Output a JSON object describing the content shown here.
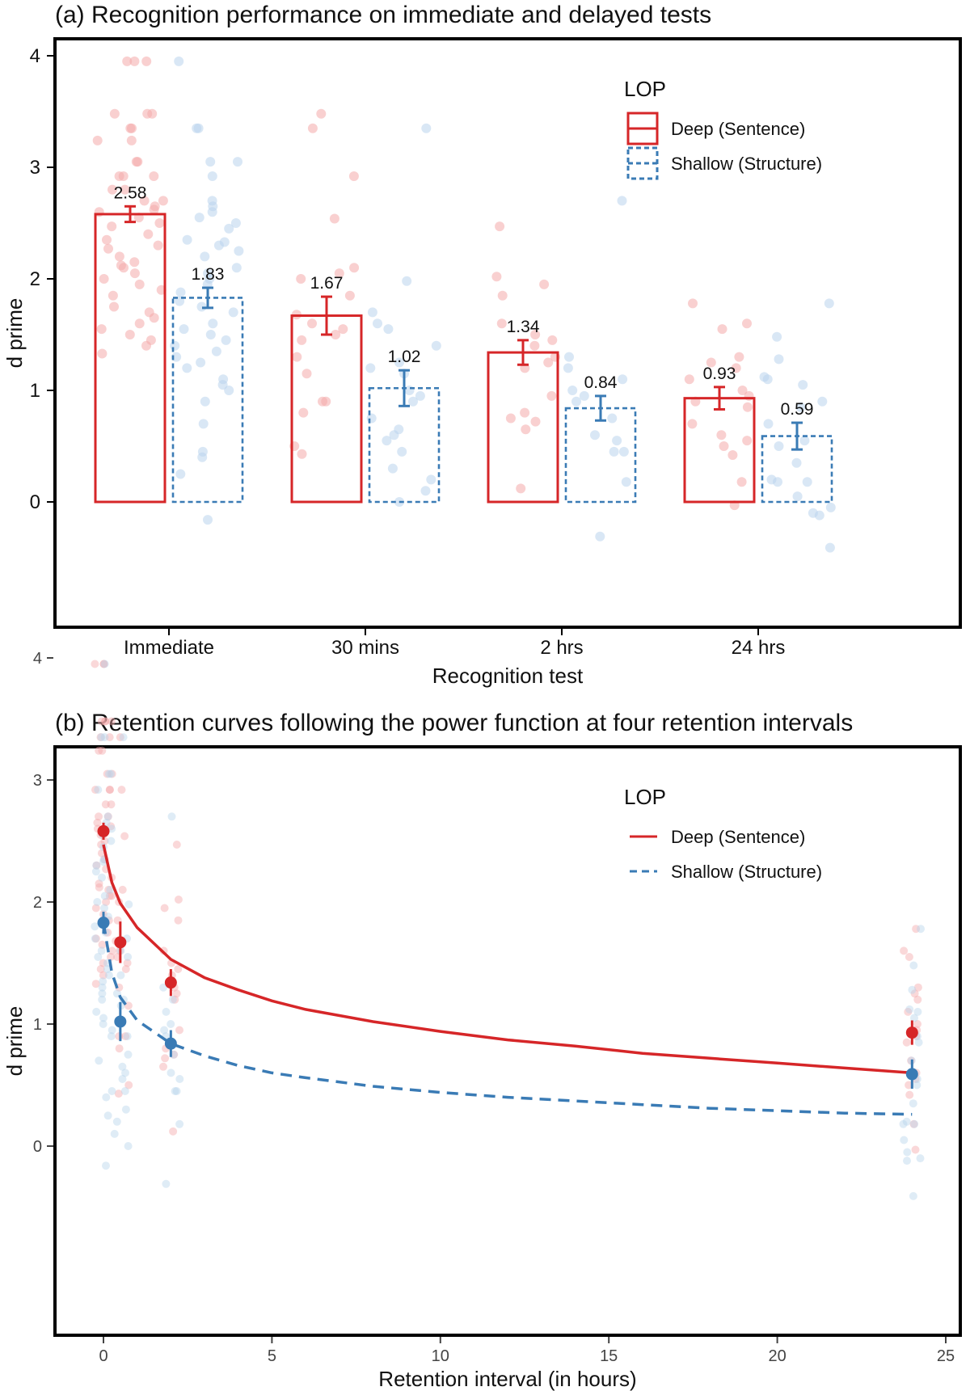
{
  "colors": {
    "deep": "#d62628",
    "shallow": "#3a7bb5",
    "deep_point": "#f4a9aa",
    "shallow_point": "#b9d4ec"
  },
  "legend": {
    "title": "LOP",
    "entries": [
      {
        "key": "deep",
        "label": "Deep (Sentence)"
      },
      {
        "key": "shallow",
        "label": "Shallow (Structure)"
      }
    ]
  },
  "chart_data": [
    {
      "type": "bar",
      "panel": "a",
      "title": "(a) Recognition performance on immediate and delayed tests",
      "xlabel": "Recognition test",
      "ylabel": "d prime",
      "categories": [
        "Immediate",
        "30 mins",
        "2 hrs",
        "24 hrs"
      ],
      "ylim": [
        -0.6,
        4.1
      ],
      "yticks": [
        0,
        1,
        2,
        3,
        4
      ],
      "grid": false,
      "legend_position": "top-right",
      "series": [
        {
          "name": "Deep (Sentence)",
          "key": "deep",
          "values": [
            2.58,
            1.67,
            1.34,
            0.93
          ],
          "se": [
            0.07,
            0.17,
            0.11,
            0.1
          ],
          "labels": [
            "2.58",
            "1.67",
            "1.34",
            "0.93"
          ]
        },
        {
          "name": "Shallow (Structure)",
          "key": "shallow",
          "values": [
            1.83,
            1.02,
            0.84,
            0.59
          ],
          "se": [
            0.09,
            0.16,
            0.11,
            0.12
          ],
          "labels": [
            "1.83",
            "1.02",
            "0.84",
            "0.59"
          ]
        }
      ],
      "points": {
        "deep": [
          [
            3.95,
            3.95,
            3.95,
            3.48,
            3.48,
            3.48,
            3.35,
            3.35,
            3.24,
            3.24,
            3.05,
            3.05,
            2.92,
            2.92,
            2.92,
            2.8,
            2.8,
            2.7,
            2.7,
            2.65,
            2.62,
            2.6,
            2.55,
            2.5,
            2.47,
            2.4,
            2.35,
            2.3,
            2.27,
            2.2,
            2.15,
            2.12,
            2.1,
            2.05,
            2.0,
            1.95,
            1.9,
            1.85,
            1.75,
            1.7,
            1.65,
            1.6,
            1.55,
            1.5,
            1.45,
            1.4,
            1.33
          ],
          [
            3.48,
            3.35,
            2.92,
            2.54,
            2.1,
            2.05,
            2.0,
            1.85,
            1.68,
            1.6,
            1.55,
            1.5,
            1.45,
            1.3,
            1.15,
            0.9,
            0.9,
            0.8,
            0.5,
            0.43
          ],
          [
            2.47,
            2.02,
            1.95,
            1.85,
            1.6,
            1.5,
            1.45,
            1.4,
            1.3,
            1.25,
            1.2,
            0.95,
            0.8,
            0.75,
            0.72,
            0.65,
            0.12
          ],
          [
            1.78,
            1.6,
            1.55,
            1.3,
            1.25,
            1.2,
            1.1,
            1.0,
            0.95,
            0.9,
            0.85,
            0.7,
            0.6,
            0.55,
            0.5,
            0.42,
            0.18,
            -0.03
          ]
        ],
        "shallow": [
          [
            3.95,
            3.35,
            3.35,
            3.05,
            3.05,
            2.92,
            2.7,
            2.65,
            2.6,
            2.55,
            2.5,
            2.45,
            2.35,
            2.33,
            2.3,
            2.25,
            2.2,
            2.1,
            2.05,
            2.0,
            1.95,
            1.88,
            1.8,
            1.75,
            1.7,
            1.6,
            1.55,
            1.5,
            1.45,
            1.4,
            1.35,
            1.3,
            1.25,
            1.2,
            1.1,
            1.05,
            1.0,
            0.9,
            0.7,
            0.45,
            0.4,
            0.25,
            -0.16
          ],
          [
            3.35,
            1.98,
            1.7,
            1.6,
            1.55,
            1.4,
            1.25,
            1.2,
            1.15,
            1.0,
            0.95,
            0.9,
            0.75,
            0.65,
            0.6,
            0.55,
            0.45,
            0.3,
            0.2,
            0.1,
            0.0
          ],
          [
            2.7,
            1.3,
            1.2,
            1.1,
            1.0,
            0.95,
            0.9,
            0.75,
            0.6,
            0.55,
            0.45,
            0.45,
            0.18,
            -0.31
          ],
          [
            1.78,
            1.48,
            1.28,
            1.12,
            1.1,
            1.05,
            0.9,
            0.85,
            0.7,
            0.55,
            0.5,
            0.35,
            0.2,
            0.18,
            0.18,
            0.05,
            -0.05,
            -0.1,
            -0.12,
            -0.41
          ]
        ]
      }
    },
    {
      "type": "scatter",
      "panel": "b",
      "title": "(b) Retention curves following the power function at four retention intervals",
      "xlabel": "Retention interval (in hours)",
      "ylabel": "d prime",
      "xlim": [
        -1.1,
        25.2
      ],
      "ylim": [
        -0.6,
        4.2
      ],
      "xticks": [
        0,
        5,
        10,
        15,
        20,
        25
      ],
      "yticks": [
        0,
        1,
        2,
        3,
        4
      ],
      "grid": false,
      "legend_position": "top-right",
      "series": [
        {
          "name": "Deep (Sentence)",
          "key": "deep",
          "x": [
            0,
            0.5,
            2,
            24
          ],
          "y": [
            2.58,
            1.67,
            1.34,
            0.93
          ],
          "se": [
            0.07,
            0.17,
            0.11,
            0.1
          ]
        },
        {
          "name": "Shallow (Structure)",
          "key": "shallow",
          "x": [
            0,
            0.5,
            2,
            24
          ],
          "y": [
            1.83,
            1.02,
            0.84,
            0.59
          ],
          "se": [
            0.09,
            0.16,
            0.11,
            0.12
          ]
        }
      ],
      "curves": [
        {
          "key": "deep",
          "style": "solid",
          "x": [
            0,
            0.25,
            0.5,
            1,
            2,
            3,
            4,
            5,
            6,
            8,
            10,
            12,
            14,
            16,
            18,
            20,
            22,
            24
          ],
          "y": [
            2.47,
            2.16,
            1.99,
            1.79,
            1.53,
            1.38,
            1.28,
            1.19,
            1.12,
            1.02,
            0.94,
            0.87,
            0.82,
            0.76,
            0.72,
            0.68,
            0.64,
            0.6
          ]
        },
        {
          "key": "shallow",
          "style": "dashed",
          "x": [
            0,
            0.25,
            0.5,
            1,
            2,
            3,
            4,
            5,
            6,
            8,
            10,
            12,
            14,
            16,
            18,
            20,
            22,
            24
          ],
          "y": [
            1.83,
            1.42,
            1.22,
            1.03,
            0.84,
            0.74,
            0.66,
            0.6,
            0.56,
            0.49,
            0.44,
            0.4,
            0.37,
            0.34,
            0.31,
            0.29,
            0.27,
            0.26
          ]
        }
      ]
    }
  ]
}
